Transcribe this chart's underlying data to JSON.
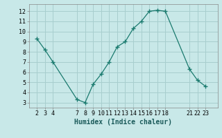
{
  "x": [
    2,
    3,
    4,
    7,
    8,
    9,
    10,
    11,
    12,
    13,
    14,
    15,
    16,
    17,
    18,
    21,
    22,
    23
  ],
  "y": [
    9.3,
    8.2,
    7.0,
    3.3,
    3.0,
    4.8,
    5.8,
    7.0,
    8.5,
    9.0,
    10.3,
    11.0,
    12.0,
    12.1,
    12.0,
    6.3,
    5.2,
    4.6
  ],
  "line_color": "#1a7a6e",
  "marker": "+",
  "bg_color": "#c8e8e8",
  "grid_color": "#a8cece",
  "xlabel": "Humidex (Indice chaleur)",
  "xlabel_fontsize": 7,
  "tick_fontsize": 6,
  "ylim": [
    2.5,
    12.7
  ],
  "xlim": [
    1.0,
    24.5
  ],
  "xticks": [
    2,
    3,
    4,
    7,
    8,
    9,
    10,
    11,
    12,
    13,
    14,
    15,
    16,
    17,
    18,
    21,
    22,
    23
  ],
  "yticks": [
    3,
    4,
    5,
    6,
    7,
    8,
    9,
    10,
    11,
    12
  ]
}
